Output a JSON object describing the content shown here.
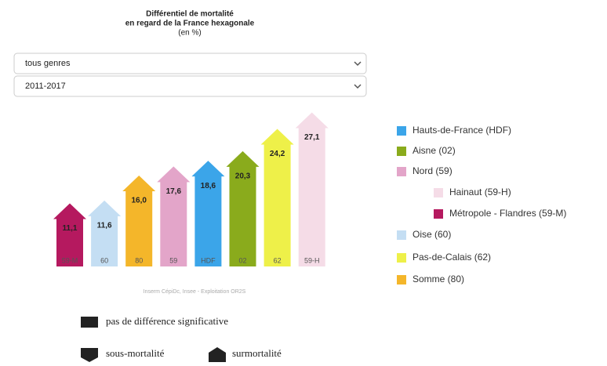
{
  "chart_data": {
    "type": "arrow-bar",
    "title": [
      "Différentiel de mortalité",
      "en regard de la France hexagonale",
      "(en %)"
    ],
    "selects": [
      "tous genres",
      "2011-2017"
    ],
    "categories": [
      "59-M",
      "60",
      "80",
      "59",
      "HDF",
      "02",
      "62",
      "59-H"
    ],
    "values": [
      11.1,
      11.6,
      16.0,
      17.6,
      18.6,
      20.3,
      24.2,
      27.1
    ],
    "value_labels": [
      "11,1",
      "11,6",
      "16,0",
      "17,6",
      "18,6",
      "20,3",
      "24,2",
      "27,1"
    ],
    "colors": [
      "#b5195f",
      "#c4def3",
      "#f4b62a",
      "#e3a5c9",
      "#3ba5e9",
      "#8aab1c",
      "#eef049",
      "#f5dce7"
    ],
    "legend": [
      {
        "name": "Hauts-de-France (HDF)",
        "color": "#3ba5e9",
        "level": 0
      },
      {
        "name": "Aisne (02)",
        "color": "#8aab1c",
        "level": 0
      },
      {
        "name": "Nord (59)",
        "color": "#e3a5c9",
        "level": 0
      },
      {
        "name": "Hainaut (59-H)",
        "color": "#f5dce7",
        "level": 1
      },
      {
        "name": "Métropole - Flandres (59-M)",
        "color": "#b5195f",
        "level": 1
      },
      {
        "name": "Oise (60)",
        "color": "#c4def3",
        "level": 0
      },
      {
        "name": "Pas-de-Calais (62)",
        "color": "#eef049",
        "level": 0
      },
      {
        "name": "Somme (80)",
        "color": "#f4b62a",
        "level": 0
      }
    ],
    "source": "Inserm CépiDc, Insee - Exploitation OR2S",
    "key": [
      "pas de différence significative",
      "sous-mortalité",
      "surmortalité"
    ]
  }
}
